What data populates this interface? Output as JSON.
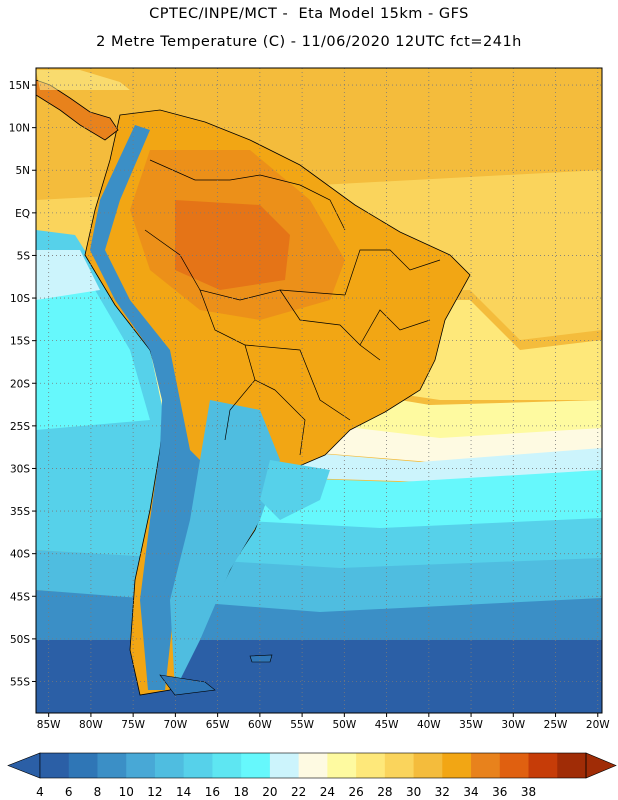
{
  "header": {
    "line1": "CPTEC/INPE/MCT -  Eta Model 15km - GFS",
    "line2": "2 Metre Temperature (C) - 11/06/2020 12UTC fct=241h"
  },
  "map": {
    "lat_labels": [
      "15N",
      "10N",
      "5N",
      "EQ",
      "5S",
      "10S",
      "15S",
      "20S",
      "25S",
      "30S",
      "35S",
      "40S",
      "45S",
      "50S",
      "55S"
    ],
    "lat_values": [
      15,
      10,
      5,
      0,
      -5,
      -10,
      -15,
      -20,
      -25,
      -30,
      -35,
      -40,
      -45,
      -50,
      -55
    ],
    "lon_labels": [
      "85W",
      "80W",
      "75W",
      "70W",
      "65W",
      "60W",
      "55W",
      "50W",
      "45W",
      "40W",
      "35W",
      "30W",
      "25W",
      "20W"
    ],
    "lon_values": [
      -85,
      -80,
      -75,
      -70,
      -65,
      -60,
      -55,
      -50,
      -45,
      -40,
      -35,
      -30,
      -25,
      -20
    ],
    "gridlines": "dotted"
  },
  "colorbar": {
    "labels": [
      "4",
      "6",
      "8",
      "10",
      "12",
      "14",
      "16",
      "18",
      "20",
      "22",
      "24",
      "26",
      "28",
      "30",
      "32",
      "34",
      "36",
      "38"
    ],
    "colors": [
      "#2b5fa6",
      "#2f76b6",
      "#3b8fc6",
      "#48a8d6",
      "#4fbde0",
      "#56d1ea",
      "#5ee6f2",
      "#66f8fc",
      "#ccf4fc",
      "#fefae2",
      "#fefaa0",
      "#fee87a",
      "#fad45c",
      "#f4bc3c",
      "#f2a614",
      "#e8821c",
      "#e06010",
      "#c63c08",
      "#a02c06"
    ],
    "left_arrow_color": "#2b5fa6",
    "right_arrow_color": "#a02c06"
  }
}
